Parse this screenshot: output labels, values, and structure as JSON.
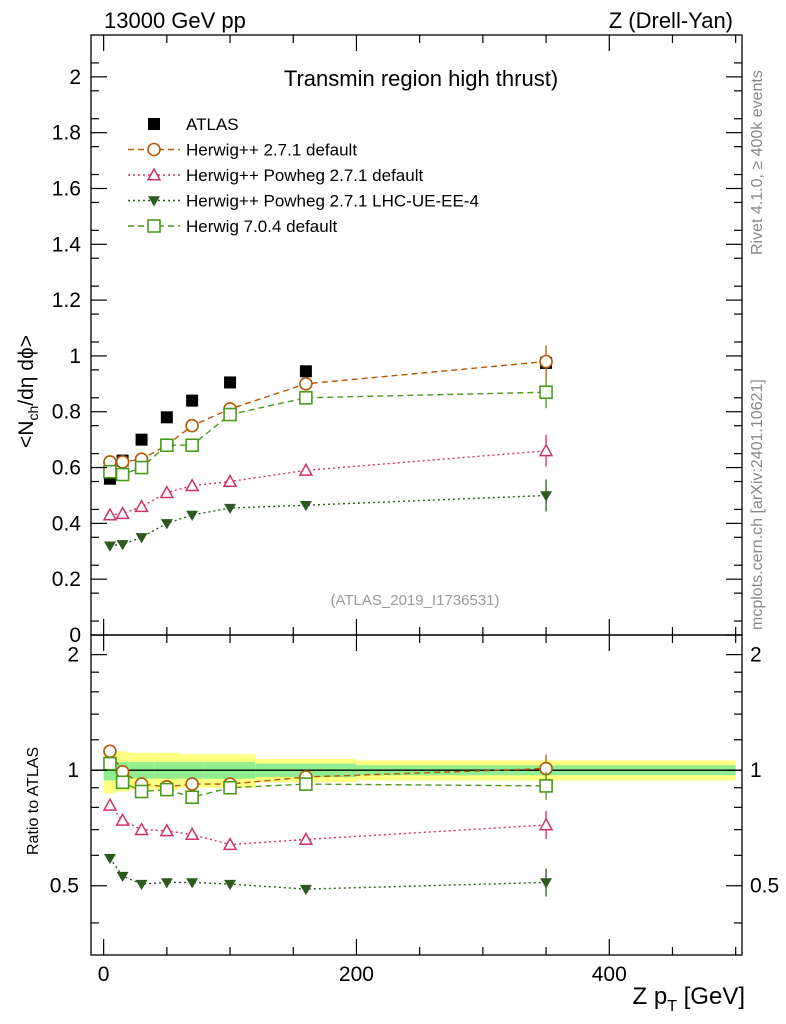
{
  "header": {
    "left": "13000 GeV pp",
    "right": "Z (Drell-Yan)"
  },
  "side_text": {
    "rivet": "Rivet 4.1.0, ≥ 400k events",
    "mcplots": "mcplots.cern.ch [arXiv:2401.10621]"
  },
  "watermark": "(ATLAS_2019_I1736531)",
  "chart_data": {
    "type": "scatter",
    "title": "Transmin region high thrust)",
    "ylabel_parts": {
      "main": "<N",
      "sub": "ch",
      "rest": "/dη dϕ>"
    },
    "ratio_ylabel": "Ratio to ATLAS",
    "xlabel_parts": {
      "main": "Z p",
      "sub": "T",
      "rest": " [GeV]"
    },
    "xlim": [
      -10,
      505
    ],
    "ylim": [
      0,
      2.15
    ],
    "ratio_ylim": [
      0.33,
      2.25
    ],
    "main_yticks": [
      0,
      0.2,
      0.4,
      0.6,
      0.8,
      1,
      1.2,
      1.4,
      1.6,
      1.8,
      2
    ],
    "main_ytick_labels": [
      "0",
      "0.2",
      "0.4",
      "0.6",
      "0.8",
      "1",
      "1.2",
      "1.4",
      "1.6",
      "1.8",
      "2"
    ],
    "ratio_yticks": [
      0.5,
      1,
      2
    ],
    "ratio_ytick_labels": [
      "0.5",
      "1",
      "2"
    ],
    "xticks": [
      0,
      200,
      400
    ],
    "xtick_labels": [
      "0",
      "200",
      "400"
    ],
    "x": [
      5,
      15,
      30,
      50,
      70,
      100,
      160,
      350
    ],
    "data_bins": [
      [
        0,
        10
      ],
      [
        10,
        20
      ],
      [
        20,
        40
      ],
      [
        40,
        60
      ],
      [
        60,
        80
      ],
      [
        80,
        120
      ],
      [
        120,
        200
      ],
      [
        200,
        500
      ]
    ],
    "band_inner": [
      0.06,
      0.05,
      0.05,
      0.05,
      0.05,
      0.05,
      0.04,
      0.03
    ],
    "band_outer": [
      0.13,
      0.12,
      0.11,
      0.11,
      0.1,
      0.1,
      0.07,
      0.06
    ],
    "series": [
      {
        "name": "ATLAS",
        "marker": "square-filled",
        "color": "#000000",
        "line": "none",
        "values": [
          0.56,
          0.625,
          0.7,
          0.78,
          0.84,
          0.905,
          0.945,
          0.975
        ],
        "ratio": [
          1,
          1,
          1,
          1,
          1,
          1,
          1,
          1
        ]
      },
      {
        "name": "Herwig++ 2.7.1 default",
        "marker": "circle-open",
        "color": "#b35806",
        "line": "dashed",
        "values": [
          0.62,
          0.62,
          0.63,
          0.68,
          0.75,
          0.81,
          0.9,
          0.98
        ],
        "ratio": [
          1.12,
          0.99,
          0.92,
          0.905,
          0.92,
          0.92,
          0.96,
          1.01
        ]
      },
      {
        "name": "Herwig++ Powheg 2.7.1 default",
        "marker": "triangle-open",
        "color": "#cc3366",
        "line": "dotted",
        "values": [
          0.43,
          0.435,
          0.46,
          0.51,
          0.535,
          0.55,
          0.59,
          0.66
        ],
        "ratio": [
          0.81,
          0.74,
          0.7,
          0.695,
          0.68,
          0.64,
          0.66,
          0.72
        ]
      },
      {
        "name": "Herwig++ Powheg 2.7.1 LHC-UE-EE-4",
        "marker": "triangle-down-filled",
        "color": "#2d5a1e",
        "line": "dotted",
        "values": [
          0.32,
          0.325,
          0.35,
          0.4,
          0.43,
          0.455,
          0.465,
          0.5
        ],
        "ratio": [
          0.59,
          0.53,
          0.505,
          0.51,
          0.51,
          0.505,
          0.49,
          0.51
        ]
      },
      {
        "name": "Herwig 7.0.4 default",
        "marker": "square-open",
        "color": "#4a9a1e",
        "line": "dashed",
        "values": [
          0.585,
          0.575,
          0.6,
          0.68,
          0.68,
          0.79,
          0.85,
          0.87
        ],
        "ratio": [
          1.04,
          0.93,
          0.88,
          0.89,
          0.85,
          0.9,
          0.92,
          0.91
        ]
      }
    ]
  }
}
